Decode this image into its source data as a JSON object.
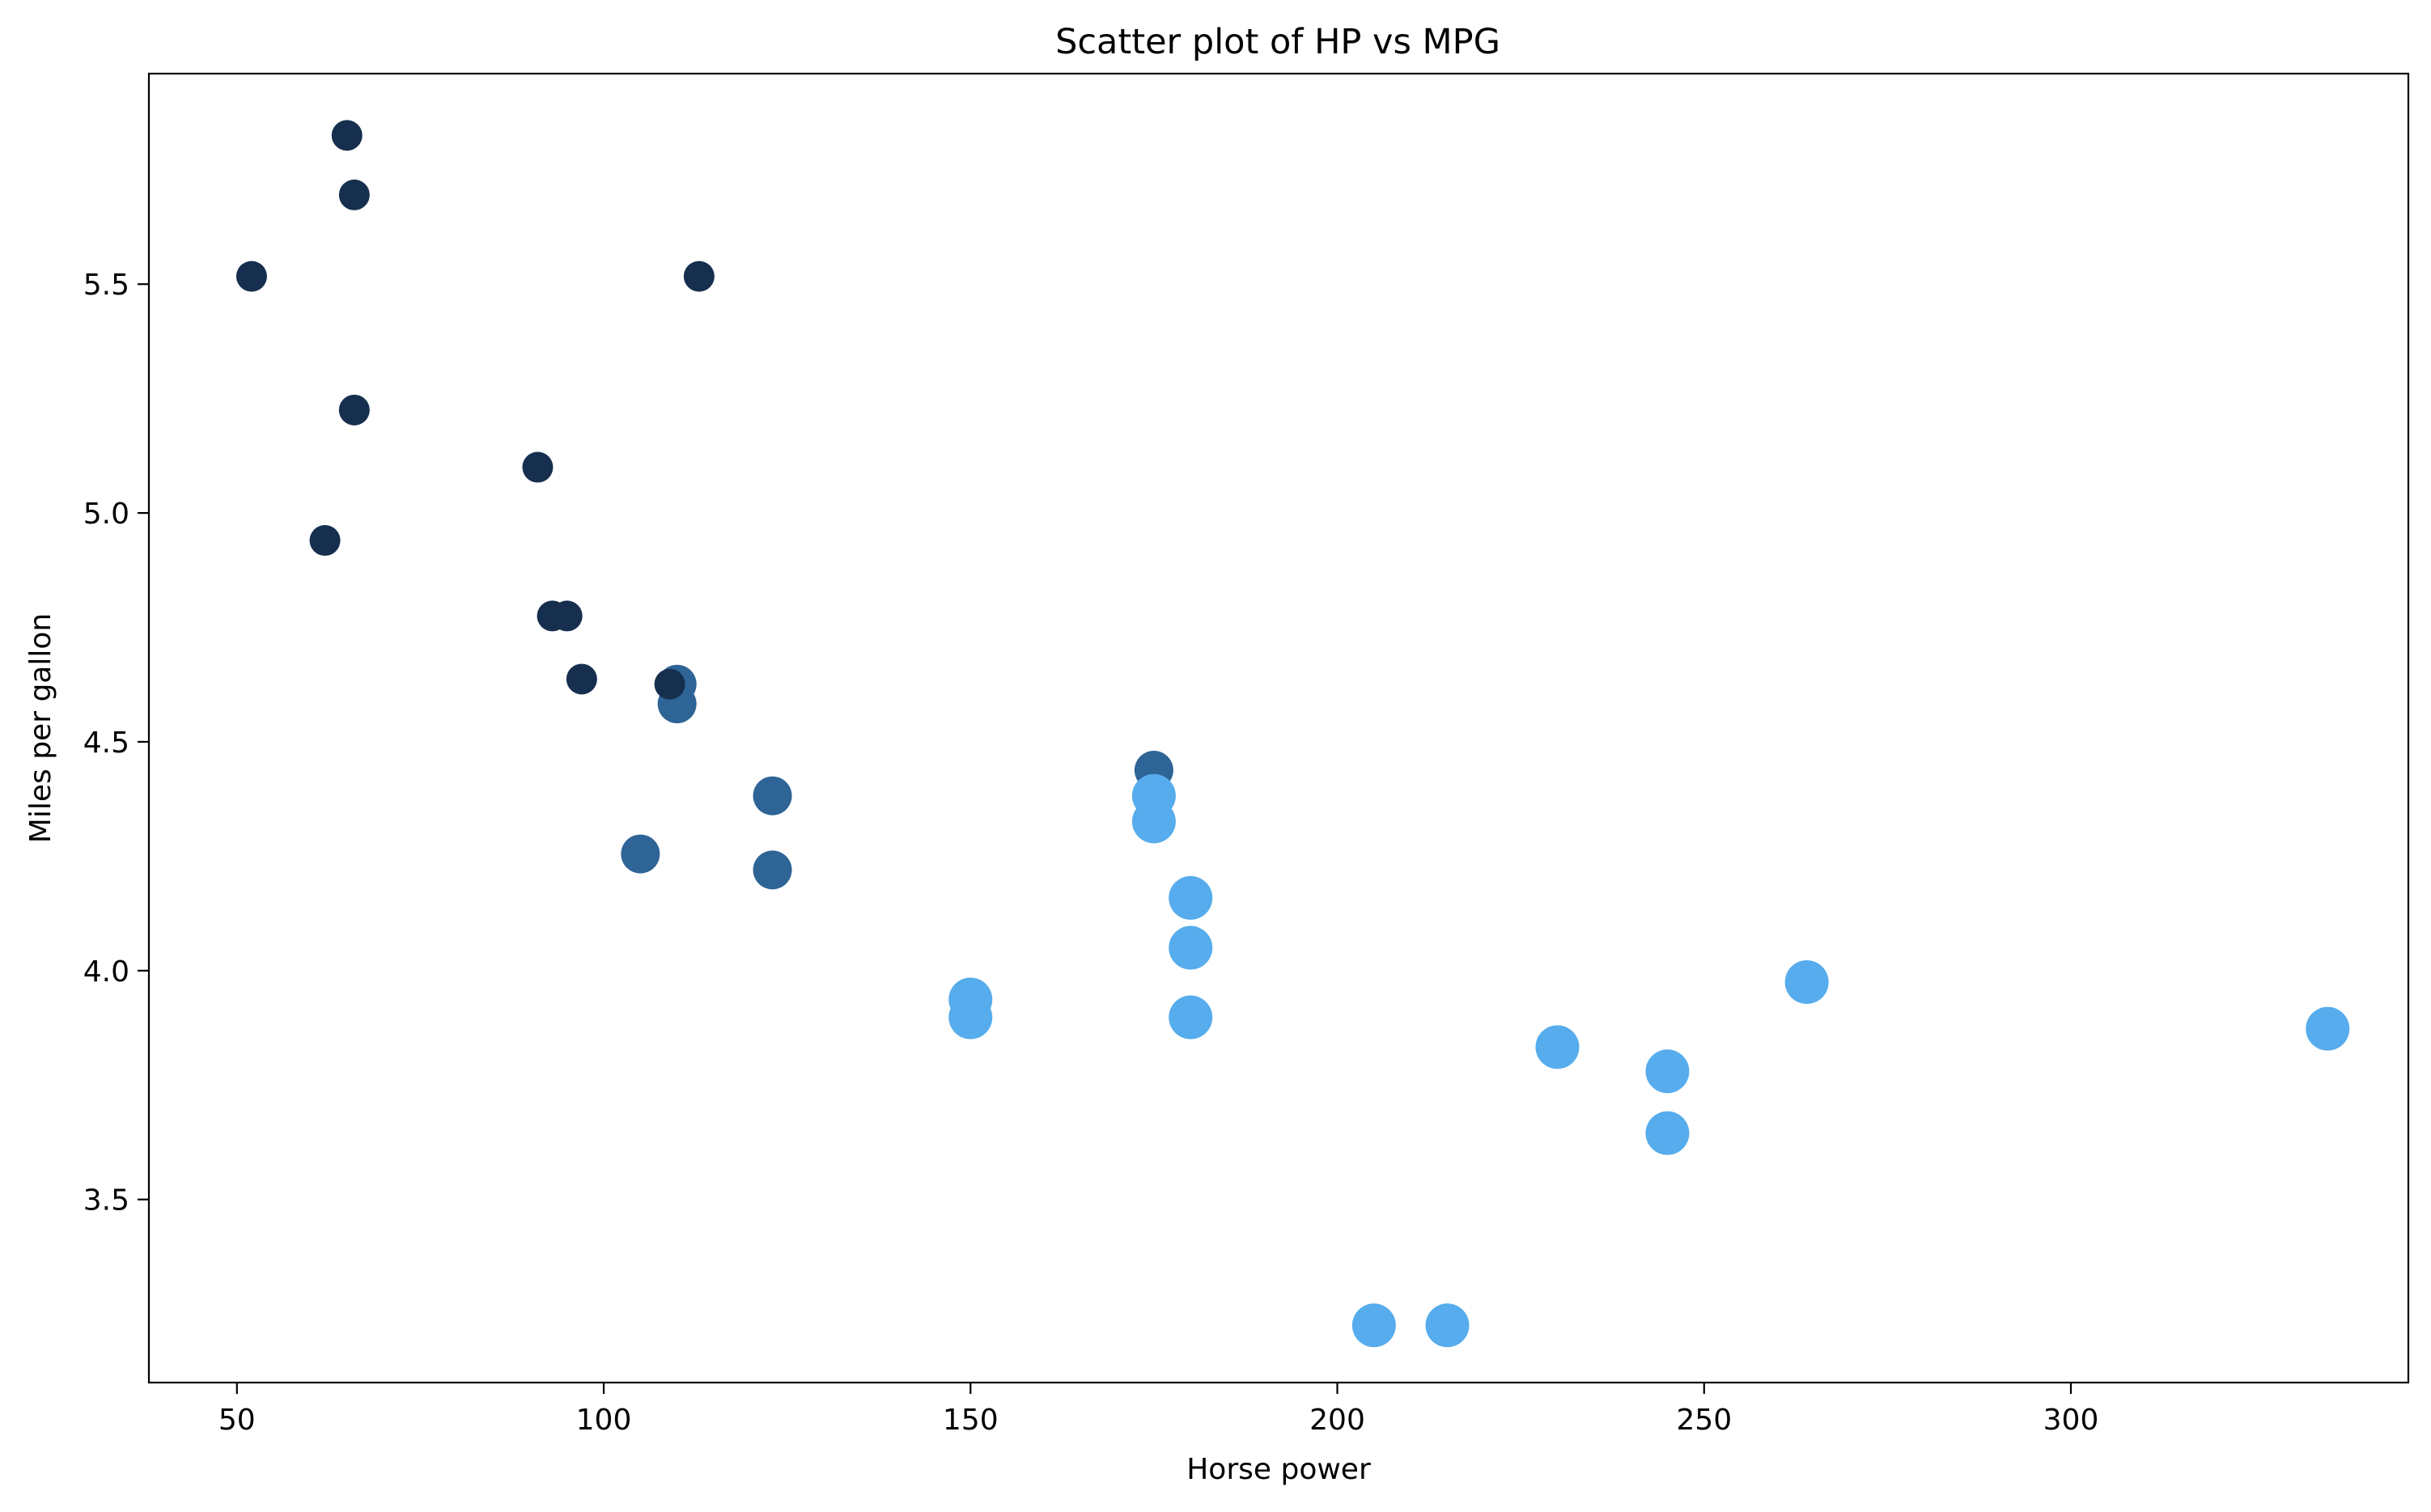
{
  "chart_data": {
    "type": "scatter",
    "title": "Scatter plot of HP vs MPG",
    "xlabel": "Horse power",
    "ylabel": "Miles per gallon",
    "xlim": [
      38,
      346
    ],
    "ylim": [
      3.1,
      5.96
    ],
    "xticks": [
      50,
      100,
      150,
      200,
      250,
      300
    ],
    "yticks": [
      3.5,
      4.0,
      4.5,
      5.0,
      5.5
    ],
    "grid": false,
    "legend": "none",
    "colors": {
      "dark": "#172f4f",
      "medium": "#2e6496",
      "light": "#56acec"
    },
    "points": [
      {
        "x": 65,
        "y": 5.825,
        "group": "dark"
      },
      {
        "x": 66,
        "y": 5.695,
        "group": "dark"
      },
      {
        "x": 52,
        "y": 5.517,
        "group": "dark"
      },
      {
        "x": 113,
        "y": 5.517,
        "group": "dark"
      },
      {
        "x": 66,
        "y": 5.225,
        "group": "dark"
      },
      {
        "x": 91,
        "y": 5.1,
        "group": "dark"
      },
      {
        "x": 62,
        "y": 4.94,
        "group": "dark"
      },
      {
        "x": 93,
        "y": 4.775,
        "group": "dark"
      },
      {
        "x": 95,
        "y": 4.775,
        "group": "dark"
      },
      {
        "x": 97,
        "y": 4.637,
        "group": "dark"
      },
      {
        "x": 110,
        "y": 4.626,
        "group": "medium"
      },
      {
        "x": 110,
        "y": 4.583,
        "group": "medium"
      },
      {
        "x": 109,
        "y": 4.626,
        "group": "dark"
      },
      {
        "x": 175,
        "y": 4.438,
        "group": "medium"
      },
      {
        "x": 175,
        "y": 4.382,
        "group": "light"
      },
      {
        "x": 175,
        "y": 4.326,
        "group": "light"
      },
      {
        "x": 123,
        "y": 4.382,
        "group": "medium"
      },
      {
        "x": 105,
        "y": 4.255,
        "group": "medium"
      },
      {
        "x": 123,
        "y": 4.22,
        "group": "medium"
      },
      {
        "x": 180,
        "y": 4.159,
        "group": "light"
      },
      {
        "x": 180,
        "y": 4.05,
        "group": "light"
      },
      {
        "x": 180,
        "y": 3.898,
        "group": "light"
      },
      {
        "x": 150,
        "y": 3.937,
        "group": "light"
      },
      {
        "x": 150,
        "y": 3.898,
        "group": "light"
      },
      {
        "x": 264,
        "y": 3.975,
        "group": "light"
      },
      {
        "x": 335,
        "y": 3.873,
        "group": "light"
      },
      {
        "x": 230,
        "y": 3.833,
        "group": "light"
      },
      {
        "x": 245,
        "y": 3.78,
        "group": "light"
      },
      {
        "x": 245,
        "y": 3.645,
        "group": "light"
      },
      {
        "x": 205,
        "y": 3.225,
        "group": "light"
      },
      {
        "x": 215,
        "y": 3.225,
        "group": "light"
      }
    ]
  }
}
